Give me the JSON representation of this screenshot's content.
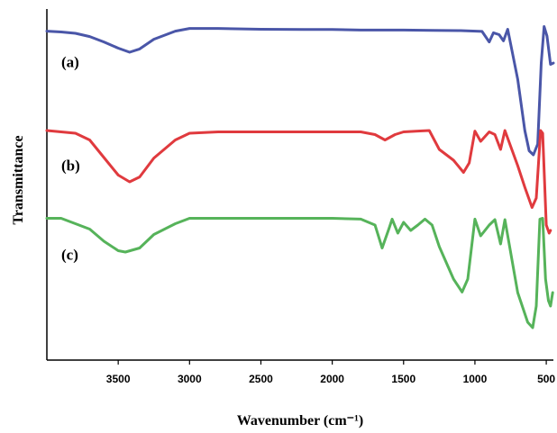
{
  "chart_data": {
    "type": "line",
    "title": "",
    "xlabel": "Wavenumber (cm⁻¹)",
    "ylabel": "Transmittance",
    "xlim": [
      4000,
      450
    ],
    "x_reversed": true,
    "x_ticks": [
      3500,
      3000,
      2500,
      2000,
      1500,
      1000,
      500
    ],
    "y_ticks_shown": false,
    "grid": false,
    "legend": "none",
    "series": [
      {
        "name": "(a)",
        "color": "#4a56a8",
        "values": [
          [
            4000,
            0.918
          ],
          [
            3900,
            0.915
          ],
          [
            3800,
            0.91
          ],
          [
            3700,
            0.898
          ],
          [
            3600,
            0.878
          ],
          [
            3500,
            0.855
          ],
          [
            3420,
            0.84
          ],
          [
            3350,
            0.852
          ],
          [
            3250,
            0.888
          ],
          [
            3100,
            0.918
          ],
          [
            3000,
            0.928
          ],
          [
            2800,
            0.928
          ],
          [
            2500,
            0.925
          ],
          [
            2200,
            0.924
          ],
          [
            2000,
            0.924
          ],
          [
            1800,
            0.922
          ],
          [
            1500,
            0.922
          ],
          [
            1300,
            0.921
          ],
          [
            1100,
            0.92
          ],
          [
            950,
            0.917
          ],
          [
            900,
            0.878
          ],
          [
            870,
            0.912
          ],
          [
            830,
            0.905
          ],
          [
            800,
            0.882
          ],
          [
            770,
            0.925
          ],
          [
            700,
            0.74
          ],
          [
            650,
            0.55
          ],
          [
            620,
            0.475
          ],
          [
            590,
            0.46
          ],
          [
            560,
            0.5
          ],
          [
            535,
            0.8
          ],
          [
            515,
            0.935
          ],
          [
            495,
            0.9
          ],
          [
            470,
            0.795
          ],
          [
            450,
            0.8
          ]
        ]
      },
      {
        "name": "(b)",
        "color": "#e03a3e",
        "values": [
          [
            4000,
            0.55
          ],
          [
            3900,
            0.545
          ],
          [
            3800,
            0.54
          ],
          [
            3700,
            0.515
          ],
          [
            3600,
            0.45
          ],
          [
            3500,
            0.385
          ],
          [
            3420,
            0.36
          ],
          [
            3350,
            0.378
          ],
          [
            3250,
            0.448
          ],
          [
            3100,
            0.515
          ],
          [
            3000,
            0.54
          ],
          [
            2800,
            0.545
          ],
          [
            2500,
            0.545
          ],
          [
            2200,
            0.545
          ],
          [
            2000,
            0.545
          ],
          [
            1800,
            0.545
          ],
          [
            1700,
            0.535
          ],
          [
            1630,
            0.515
          ],
          [
            1560,
            0.535
          ],
          [
            1500,
            0.545
          ],
          [
            1400,
            0.548
          ],
          [
            1320,
            0.55
          ],
          [
            1250,
            0.48
          ],
          [
            1150,
            0.44
          ],
          [
            1080,
            0.395
          ],
          [
            1040,
            0.43
          ],
          [
            1000,
            0.548
          ],
          [
            960,
            0.51
          ],
          [
            900,
            0.545
          ],
          [
            860,
            0.535
          ],
          [
            820,
            0.48
          ],
          [
            790,
            0.55
          ],
          [
            700,
            0.42
          ],
          [
            650,
            0.34
          ],
          [
            600,
            0.265
          ],
          [
            570,
            0.3
          ],
          [
            540,
            0.55
          ],
          [
            525,
            0.54
          ],
          [
            500,
            0.2
          ],
          [
            480,
            0.17
          ],
          [
            470,
            0.18
          ]
        ]
      },
      {
        "name": "(c)",
        "color": "#56b35a",
        "values": [
          [
            4000,
            0.225
          ],
          [
            3900,
            0.225
          ],
          [
            3800,
            0.205
          ],
          [
            3700,
            0.185
          ],
          [
            3600,
            0.14
          ],
          [
            3500,
            0.105
          ],
          [
            3450,
            0.1
          ],
          [
            3350,
            0.115
          ],
          [
            3250,
            0.165
          ],
          [
            3100,
            0.205
          ],
          [
            3000,
            0.225
          ],
          [
            2800,
            0.225
          ],
          [
            2500,
            0.225
          ],
          [
            2200,
            0.225
          ],
          [
            2000,
            0.225
          ],
          [
            1800,
            0.222
          ],
          [
            1700,
            0.2
          ],
          [
            1650,
            0.115
          ],
          [
            1600,
            0.19
          ],
          [
            1580,
            0.222
          ],
          [
            1540,
            0.17
          ],
          [
            1500,
            0.21
          ],
          [
            1450,
            0.18
          ],
          [
            1400,
            0.2
          ],
          [
            1350,
            0.222
          ],
          [
            1300,
            0.2
          ],
          [
            1250,
            0.12
          ],
          [
            1150,
            0.0
          ],
          [
            1090,
            -0.048
          ],
          [
            1050,
            0.0
          ],
          [
            1000,
            0.222
          ],
          [
            960,
            0.16
          ],
          [
            900,
            0.2
          ],
          [
            860,
            0.22
          ],
          [
            820,
            0.13
          ],
          [
            790,
            0.22
          ],
          [
            700,
            -0.05
          ],
          [
            630,
            -0.16
          ],
          [
            595,
            -0.18
          ],
          [
            570,
            -0.1
          ],
          [
            545,
            0.222
          ],
          [
            525,
            0.225
          ],
          [
            505,
            0.0
          ],
          [
            485,
            -0.08
          ],
          [
            470,
            -0.1
          ],
          [
            455,
            -0.05
          ]
        ]
      }
    ]
  }
}
